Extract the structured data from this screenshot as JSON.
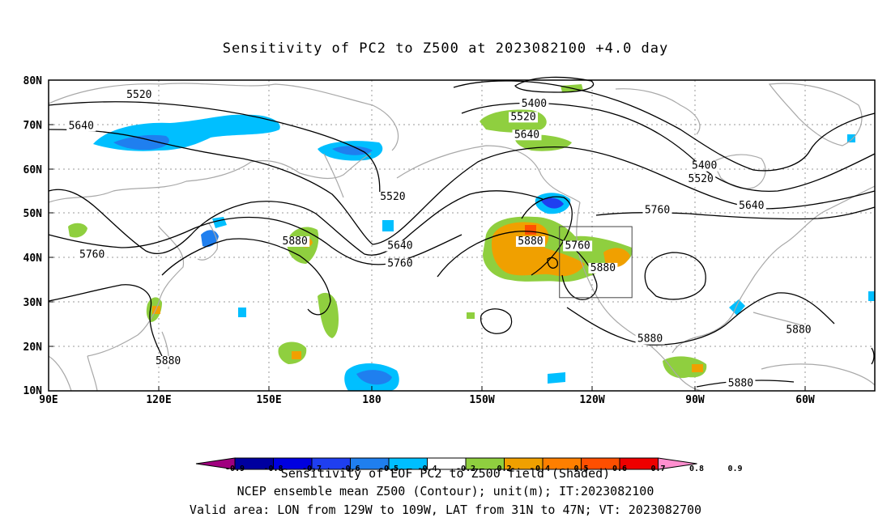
{
  "title": "Sensitivity of PC2 to Z500 at 2023082100 +4.0 day",
  "axes": {
    "lat_labels": [
      "80N",
      "70N",
      "60N",
      "50N",
      "40N",
      "30N",
      "20N",
      "10N"
    ],
    "lon_labels": [
      "90E",
      "120E",
      "150E",
      "180",
      "150W",
      "120W",
      "90W",
      "60W"
    ]
  },
  "contours": {
    "labels": [
      {
        "text": "5520",
        "lon": 115,
        "lat": 76
      },
      {
        "text": "5640",
        "lon": 99,
        "lat": 69
      },
      {
        "text": "5520",
        "lon": 185,
        "lat": 53
      },
      {
        "text": "5400",
        "lon": 224,
        "lat": 74
      },
      {
        "text": "5520",
        "lon": 221,
        "lat": 71
      },
      {
        "text": "5640",
        "lon": 222,
        "lat": 67
      },
      {
        "text": "5880",
        "lon": 158,
        "lat": 43
      },
      {
        "text": "5640",
        "lon": 187,
        "lat": 42
      },
      {
        "text": "5760",
        "lon": 187,
        "lat": 38
      },
      {
        "text": "5760",
        "lon": 102,
        "lat": 40
      },
      {
        "text": "5880",
        "lon": 223,
        "lat": 43
      },
      {
        "text": "5760",
        "lon": 236,
        "lat": 42
      },
      {
        "text": "5880",
        "lon": 243,
        "lat": 37
      },
      {
        "text": "5400",
        "lon": 271,
        "lat": 60
      },
      {
        "text": "5520",
        "lon": 270,
        "lat": 57
      },
      {
        "text": "5760",
        "lon": 258,
        "lat": 50
      },
      {
        "text": "5640",
        "lon": 284,
        "lat": 51
      },
      {
        "text": "5880",
        "lon": 256,
        "lat": 21
      },
      {
        "text": "5880",
        "lon": 297,
        "lat": 23
      },
      {
        "text": "5880",
        "lon": 123,
        "lat": 16
      },
      {
        "text": "5880",
        "lon": 281,
        "lat": 11
      }
    ]
  },
  "valid_box": {
    "lon_min": -129,
    "lon_max": -109,
    "lat_min": 31,
    "lat_max": 47
  },
  "colorbar": {
    "labels": [
      "-0.9",
      "-0.8",
      "-0.7",
      "-0.6",
      "-0.5",
      "-0.4",
      "-0.2",
      "0.2",
      "0.4",
      "0.5",
      "0.6",
      "0.7",
      "0.8",
      "0.9"
    ],
    "colors": [
      "#a0007f",
      "#00009f",
      "#0000e0",
      "#1f3ff0",
      "#1f7fef",
      "#00bfff",
      "#ffffff",
      "#8fcf3f",
      "#f0a000",
      "#ff7f00",
      "#ff4f00",
      "#ef0000",
      "#ff8fcf"
    ]
  },
  "footer": {
    "line1": "Sensitivity of EOF PC2 to Z500 field (Shaded)",
    "line2": "NCEP ensemble mean Z500 (Contour); unit(m); IT:2023082100",
    "line3": "Valid area: LON from 129W to 109W, LAT from 31N to 47N; VT: 2023082700"
  }
}
